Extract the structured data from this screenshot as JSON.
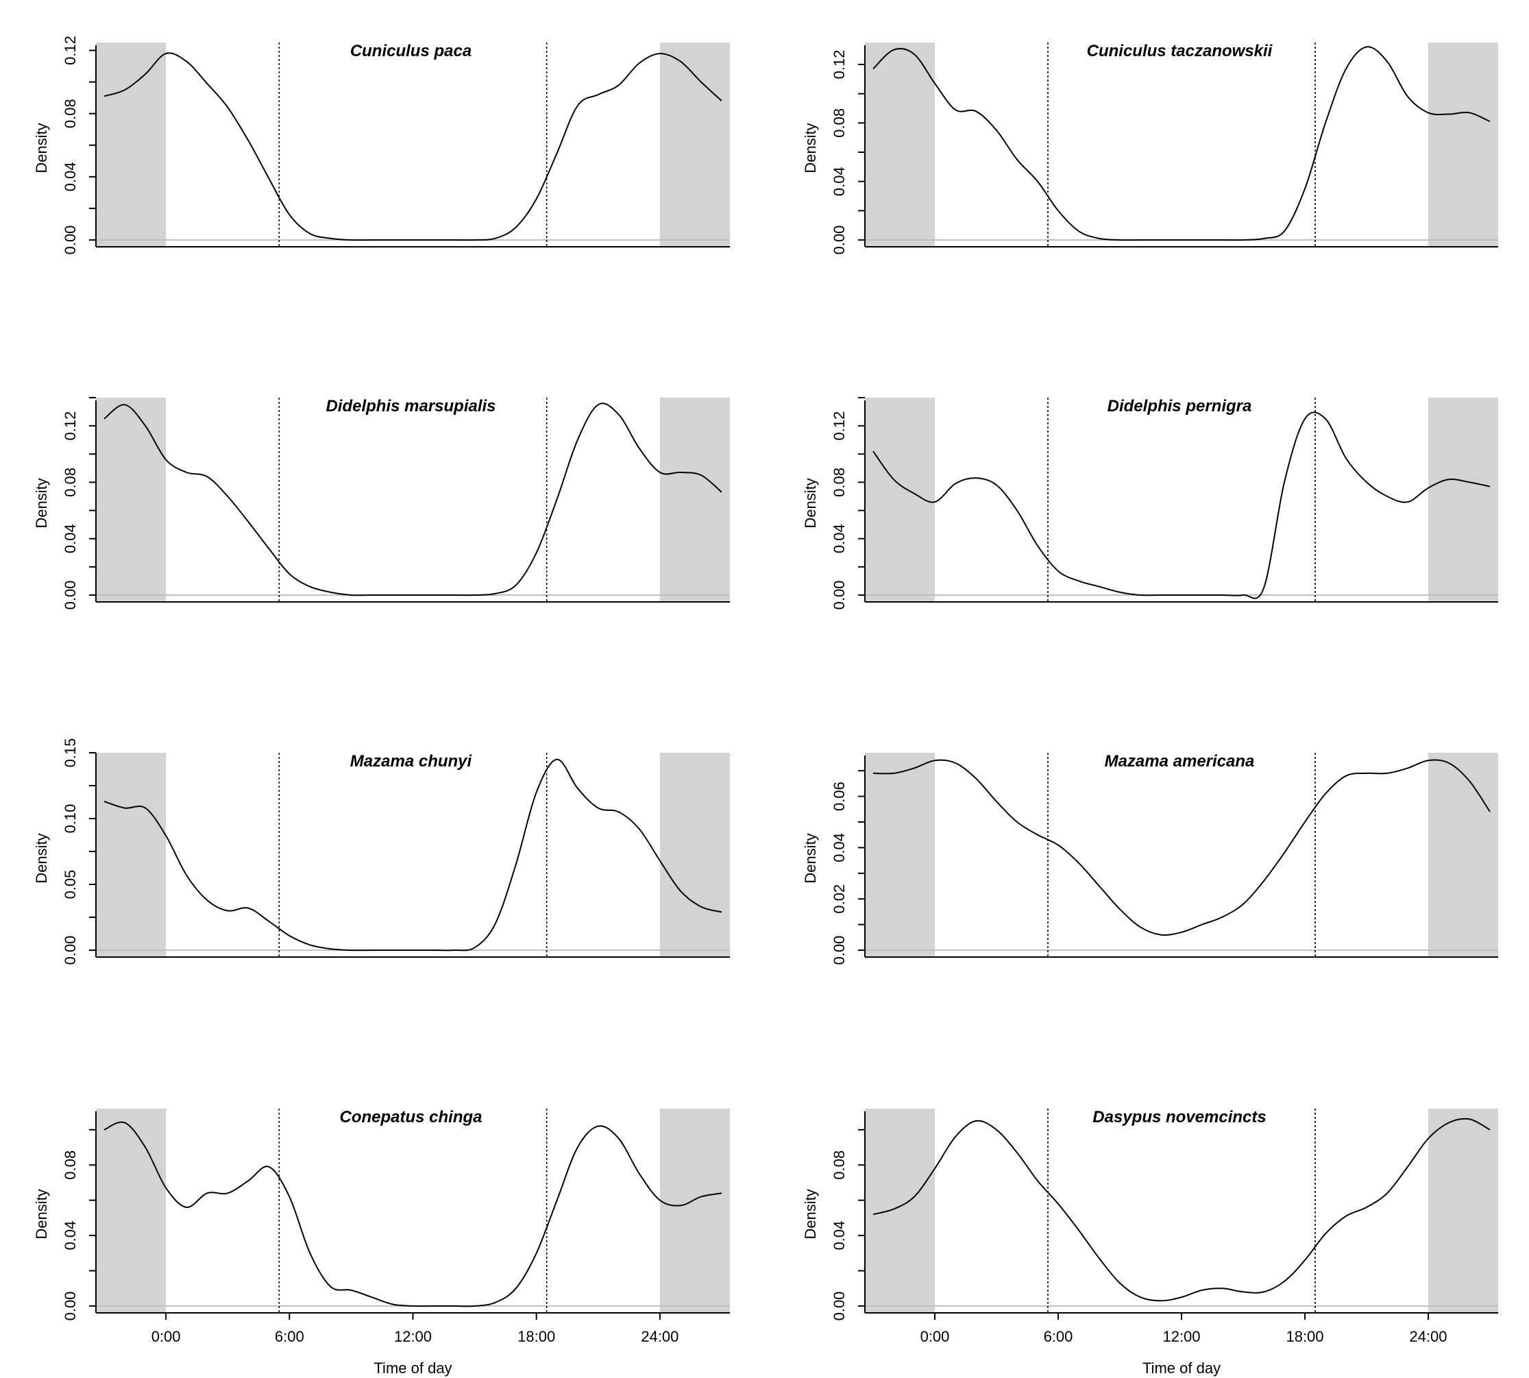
{
  "figure": {
    "colors": {
      "night_shading": "#d3d3d3",
      "curve": "#000000",
      "baseline": "#c0c0c0",
      "axis": "#000000"
    }
  },
  "chart_data": [
    {
      "type": "line",
      "title": "Cuniculus paca",
      "xlabel": "",
      "ylabel": "Density",
      "xlim": [
        -3.4,
        27.4
      ],
      "ylim": [
        0,
        0.125
      ],
      "xticks": [],
      "yticks": [
        0.0,
        0.04,
        0.08,
        0.12
      ],
      "ytick_labels": [
        "0.00",
        "0.04",
        "0.08",
        "0.12"
      ],
      "night_shading": [
        [
          -3.4,
          0
        ],
        [
          24,
          27.4
        ]
      ],
      "reference_lines": [
        5.5,
        18.5
      ],
      "grid": false,
      "series": [
        {
          "x": [
            -3,
            -2,
            -1,
            0,
            1,
            2,
            3,
            4,
            5,
            6,
            7,
            8,
            9,
            10,
            11,
            12,
            13,
            14,
            15,
            16,
            17,
            18,
            19,
            20,
            21,
            22,
            23,
            24,
            25,
            26,
            27
          ],
          "y": [
            0.091,
            0.095,
            0.105,
            0.118,
            0.113,
            0.099,
            0.084,
            0.063,
            0.039,
            0.016,
            0.004,
            0.001,
            0.0,
            0.0,
            0.0,
            0.0,
            0.0,
            0.0,
            0.0,
            0.001,
            0.008,
            0.026,
            0.055,
            0.085,
            0.092,
            0.098,
            0.112,
            0.118,
            0.113,
            0.1,
            0.088
          ]
        }
      ]
    },
    {
      "type": "line",
      "title": "Cuniculus taczanowskii",
      "xlabel": "",
      "ylabel": "Density",
      "xlim": [
        -3.4,
        27.4
      ],
      "ylim": [
        0,
        0.135
      ],
      "xticks": [],
      "yticks": [
        0.0,
        0.04,
        0.08,
        0.12
      ],
      "ytick_labels": [
        "0.00",
        "0.04",
        "0.08",
        "0.12"
      ],
      "night_shading": [
        [
          -3.4,
          0
        ],
        [
          24,
          27.4
        ]
      ],
      "reference_lines": [
        5.5,
        18.5
      ],
      "grid": false,
      "series": [
        {
          "x": [
            -3,
            -2,
            -1,
            0,
            1,
            2,
            3,
            4,
            5,
            6,
            7,
            8,
            9,
            10,
            11,
            12,
            13,
            14,
            15,
            16,
            17,
            18,
            19,
            20,
            21,
            22,
            23,
            24,
            25,
            26,
            27
          ],
          "y": [
            0.117,
            0.13,
            0.127,
            0.107,
            0.089,
            0.088,
            0.075,
            0.055,
            0.04,
            0.02,
            0.006,
            0.001,
            0.0,
            0.0,
            0.0,
            0.0,
            0.0,
            0.0,
            0.0,
            0.001,
            0.006,
            0.035,
            0.08,
            0.117,
            0.132,
            0.122,
            0.098,
            0.087,
            0.086,
            0.087,
            0.081
          ]
        }
      ]
    },
    {
      "type": "line",
      "title": "Didelphis marsupialis",
      "xlabel": "",
      "ylabel": "Density",
      "xlim": [
        -3.4,
        27.4
      ],
      "ylim": [
        0,
        0.14
      ],
      "xticks": [],
      "yticks": [
        0.0,
        0.04,
        0.08,
        0.12
      ],
      "ytick_labels": [
        "0.00",
        "0.04",
        "0.08",
        "0.12"
      ],
      "night_shading": [
        [
          -3.4,
          0
        ],
        [
          24,
          27.4
        ]
      ],
      "reference_lines": [
        5.5,
        18.5
      ],
      "grid": false,
      "series": [
        {
          "x": [
            -3,
            -2,
            -1,
            0,
            1,
            2,
            3,
            4,
            5,
            6,
            7,
            8,
            9,
            10,
            11,
            12,
            13,
            14,
            15,
            16,
            17,
            18,
            19,
            20,
            21,
            22,
            23,
            24,
            25,
            26,
            27
          ],
          "y": [
            0.125,
            0.135,
            0.12,
            0.096,
            0.087,
            0.084,
            0.07,
            0.052,
            0.033,
            0.015,
            0.006,
            0.002,
            0.0,
            0.0,
            0.0,
            0.0,
            0.0,
            0.0,
            0.0,
            0.001,
            0.007,
            0.03,
            0.068,
            0.11,
            0.135,
            0.128,
            0.104,
            0.087,
            0.087,
            0.085,
            0.073
          ]
        }
      ]
    },
    {
      "type": "line",
      "title": "Didelphis pernigra",
      "xlabel": "",
      "ylabel": "Density",
      "xlim": [
        -3.4,
        27.4
      ],
      "ylim": [
        0,
        0.14
      ],
      "xticks": [],
      "yticks": [
        0.0,
        0.04,
        0.08,
        0.12
      ],
      "ytick_labels": [
        "0.00",
        "0.04",
        "0.08",
        "0.12"
      ],
      "night_shading": [
        [
          -3.4,
          0
        ],
        [
          24,
          27.4
        ]
      ],
      "reference_lines": [
        5.5,
        18.5
      ],
      "grid": false,
      "series": [
        {
          "x": [
            -3,
            -2,
            -1,
            0,
            1,
            2,
            3,
            4,
            5,
            6,
            7,
            8,
            9,
            10,
            11,
            12,
            13,
            14,
            15,
            16,
            17,
            18,
            19,
            20,
            21,
            22,
            23,
            24,
            25,
            26,
            27
          ],
          "y": [
            0.102,
            0.082,
            0.072,
            0.066,
            0.079,
            0.083,
            0.078,
            0.06,
            0.035,
            0.017,
            0.01,
            0.006,
            0.002,
            0.0,
            0.0,
            0.0,
            0.0,
            0.0,
            0.0,
            0.005,
            0.08,
            0.125,
            0.125,
            0.097,
            0.08,
            0.07,
            0.066,
            0.076,
            0.082,
            0.08,
            0.077
          ]
        }
      ]
    },
    {
      "type": "line",
      "title": "Mazama chunyi",
      "xlabel": "",
      "ylabel": "Density",
      "xlim": [
        -3.4,
        27.4
      ],
      "ylim": [
        0,
        0.15
      ],
      "xticks": [],
      "yticks": [
        0.0,
        0.05,
        0.1,
        0.15
      ],
      "ytick_labels": [
        "0.00",
        "0.05",
        "0.10",
        "0.15"
      ],
      "night_shading": [
        [
          -3.4,
          0
        ],
        [
          24,
          27.4
        ]
      ],
      "reference_lines": [
        5.5,
        18.5
      ],
      "grid": false,
      "series": [
        {
          "x": [
            -3,
            -2,
            -1,
            0,
            1,
            2,
            3,
            4,
            5,
            6,
            7,
            8,
            9,
            10,
            11,
            12,
            13,
            14,
            15,
            16,
            17,
            18,
            19,
            20,
            21,
            22,
            23,
            24,
            25,
            26,
            27
          ],
          "y": [
            0.113,
            0.108,
            0.108,
            0.087,
            0.057,
            0.038,
            0.03,
            0.032,
            0.022,
            0.011,
            0.004,
            0.001,
            0.0,
            0.0,
            0.0,
            0.0,
            0.0,
            0.0,
            0.002,
            0.02,
            0.065,
            0.12,
            0.145,
            0.123,
            0.108,
            0.105,
            0.092,
            0.068,
            0.045,
            0.033,
            0.029
          ]
        }
      ]
    },
    {
      "type": "line",
      "title": "Mazama americana",
      "xlabel": "",
      "ylabel": "Density",
      "xlim": [
        -3.4,
        27.4
      ],
      "ylim": [
        0,
        0.077
      ],
      "xticks": [],
      "yticks": [
        0.0,
        0.02,
        0.04,
        0.06
      ],
      "ytick_labels": [
        "0.00",
        "0.02",
        "0.04",
        "0.06"
      ],
      "night_shading": [
        [
          -3.4,
          0
        ],
        [
          24,
          27.4
        ]
      ],
      "reference_lines": [
        5.5,
        18.5
      ],
      "grid": false,
      "series": [
        {
          "x": [
            -3,
            -2,
            -1,
            0,
            1,
            2,
            3,
            4,
            5,
            6,
            7,
            8,
            9,
            10,
            11,
            12,
            13,
            14,
            15,
            16,
            17,
            18,
            19,
            20,
            21,
            22,
            23,
            24,
            25,
            26,
            27
          ],
          "y": [
            0.069,
            0.069,
            0.071,
            0.074,
            0.073,
            0.067,
            0.058,
            0.05,
            0.045,
            0.041,
            0.034,
            0.025,
            0.016,
            0.009,
            0.006,
            0.007,
            0.01,
            0.013,
            0.018,
            0.027,
            0.038,
            0.05,
            0.061,
            0.068,
            0.069,
            0.069,
            0.071,
            0.074,
            0.073,
            0.066,
            0.054
          ]
        }
      ]
    },
    {
      "type": "line",
      "title": "Conepatus chinga",
      "xlabel": "Time of day",
      "ylabel": "Density",
      "xlim": [
        -3.4,
        27.4
      ],
      "ylim": [
        0,
        0.112
      ],
      "xticks": [
        0,
        6,
        12,
        18,
        24
      ],
      "xtick_labels": [
        "0:00",
        "6:00",
        "12:00",
        "18:00",
        "24:00"
      ],
      "yticks": [
        0.0,
        0.04,
        0.08
      ],
      "ytick_labels": [
        "0.00",
        "0.04",
        "0.08"
      ],
      "night_shading": [
        [
          -3.4,
          0
        ],
        [
          24,
          27.4
        ]
      ],
      "reference_lines": [
        5.5,
        18.5
      ],
      "grid": false,
      "series": [
        {
          "x": [
            -3,
            -2,
            -1,
            0,
            1,
            2,
            3,
            4,
            5,
            6,
            7,
            8,
            9,
            10,
            11,
            12,
            13,
            14,
            15,
            16,
            17,
            18,
            19,
            20,
            21,
            22,
            23,
            24,
            25,
            26,
            27
          ],
          "y": [
            0.1,
            0.104,
            0.09,
            0.067,
            0.056,
            0.064,
            0.064,
            0.071,
            0.079,
            0.062,
            0.03,
            0.011,
            0.009,
            0.005,
            0.001,
            0.0,
            0.0,
            0.0,
            0.0,
            0.002,
            0.01,
            0.03,
            0.06,
            0.09,
            0.102,
            0.095,
            0.075,
            0.06,
            0.057,
            0.062,
            0.064
          ]
        }
      ]
    },
    {
      "type": "line",
      "title": "Dasypus novemcincts",
      "xlabel": "Time of day",
      "ylabel": "Density",
      "xlim": [
        -3.4,
        27.4
      ],
      "ylim": [
        0,
        0.112
      ],
      "xticks": [
        0,
        6,
        12,
        18,
        24
      ],
      "xtick_labels": [
        "0:00",
        "6:00",
        "12:00",
        "18:00",
        "24:00"
      ],
      "yticks": [
        0.0,
        0.04,
        0.08
      ],
      "ytick_labels": [
        "0.00",
        "0.04",
        "0.08"
      ],
      "night_shading": [
        [
          -3.4,
          0
        ],
        [
          24,
          27.4
        ]
      ],
      "reference_lines": [
        5.5,
        18.5
      ],
      "grid": false,
      "series": [
        {
          "x": [
            -3,
            -2,
            -1,
            0,
            1,
            2,
            3,
            4,
            5,
            6,
            7,
            8,
            9,
            10,
            11,
            12,
            13,
            14,
            15,
            16,
            17,
            18,
            19,
            20,
            21,
            22,
            23,
            24,
            25,
            26,
            27
          ],
          "y": [
            0.052,
            0.055,
            0.062,
            0.078,
            0.096,
            0.105,
            0.1,
            0.087,
            0.071,
            0.058,
            0.043,
            0.027,
            0.013,
            0.005,
            0.003,
            0.005,
            0.009,
            0.01,
            0.008,
            0.008,
            0.014,
            0.026,
            0.041,
            0.051,
            0.056,
            0.064,
            0.079,
            0.095,
            0.104,
            0.106,
            0.1
          ]
        }
      ]
    }
  ]
}
